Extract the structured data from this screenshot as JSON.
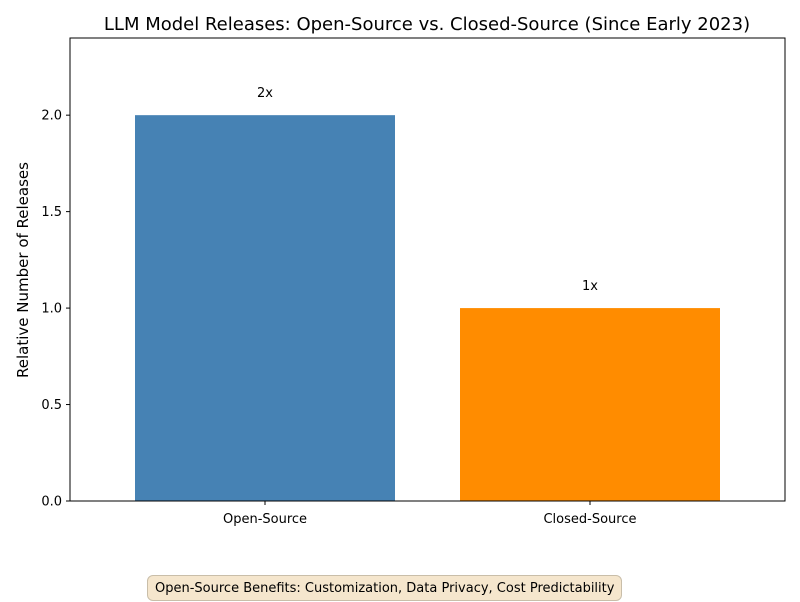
{
  "chart_data": {
    "type": "bar",
    "title": "LLM Model Releases: Open-Source vs. Closed-Source (Since Early 2023)",
    "xlabel": "",
    "ylabel": "Relative Number of Releases",
    "categories": [
      "Open-Source",
      "Closed-Source"
    ],
    "values": [
      2,
      1
    ],
    "data_labels": [
      "2x",
      "1x"
    ],
    "colors": [
      "#4682b4",
      "#ff8c00"
    ],
    "ylim": [
      0,
      2.4
    ],
    "yticks": [
      0.0,
      0.5,
      1.0,
      1.5,
      2.0
    ],
    "ytick_labels": [
      "0.0",
      "0.5",
      "1.0",
      "1.5",
      "2.0"
    ],
    "grid": false,
    "legend": "none"
  },
  "caption": {
    "text": "Open-Source Benefits: Customization, Data Privacy, Cost Predictability"
  }
}
